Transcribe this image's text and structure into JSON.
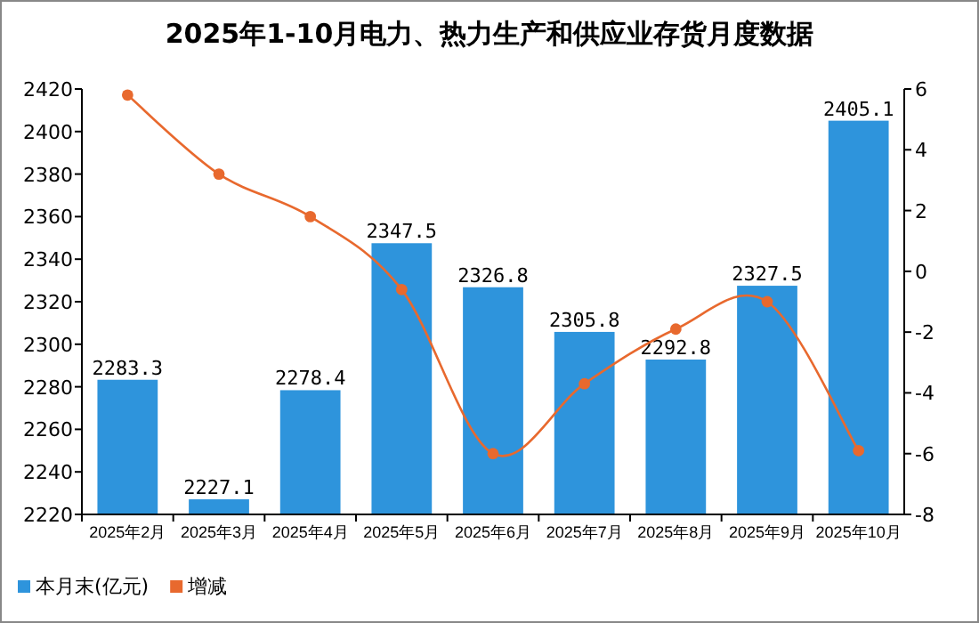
{
  "chart_data": {
    "type": "bar",
    "title": "2025年1-10月电力、热力生产和供应业存货月度数据",
    "categories": [
      "2025年2月",
      "2025年3月",
      "2025年4月",
      "2025年5月",
      "2025年6月",
      "2025年7月",
      "2025年8月",
      "2025年9月",
      "2025年10月"
    ],
    "series": [
      {
        "name": "本月末(亿元)",
        "color": "#2e94dc",
        "values": [
          2283.3,
          2227.1,
          2278.4,
          2347.5,
          2326.8,
          2305.8,
          2292.8,
          2327.5,
          2405.1
        ],
        "value_labels": [
          "2283.3",
          "2227.1",
          "2278.4",
          "2347.5",
          "2326.8",
          "2305.8",
          "2292.8",
          "2327.5",
          "2405.1"
        ]
      },
      {
        "name": "增减",
        "type": "line",
        "axis": "y2",
        "color": "#e8692e",
        "marker": "circle",
        "values": [
          5.8,
          3.2,
          1.8,
          -0.6,
          -6.0,
          -3.7,
          -1.9,
          -1.0,
          -5.9
        ]
      }
    ],
    "ylim": [
      2220,
      2420
    ],
    "yticks": [
      2220,
      2240,
      2260,
      2280,
      2300,
      2320,
      2340,
      2360,
      2380,
      2400,
      2420
    ],
    "y2lim": [
      -8,
      6
    ],
    "y2ticks": [
      -8,
      -6,
      -4,
      -2,
      0,
      2,
      4,
      6
    ],
    "legend": "bottom left",
    "grid": false
  }
}
